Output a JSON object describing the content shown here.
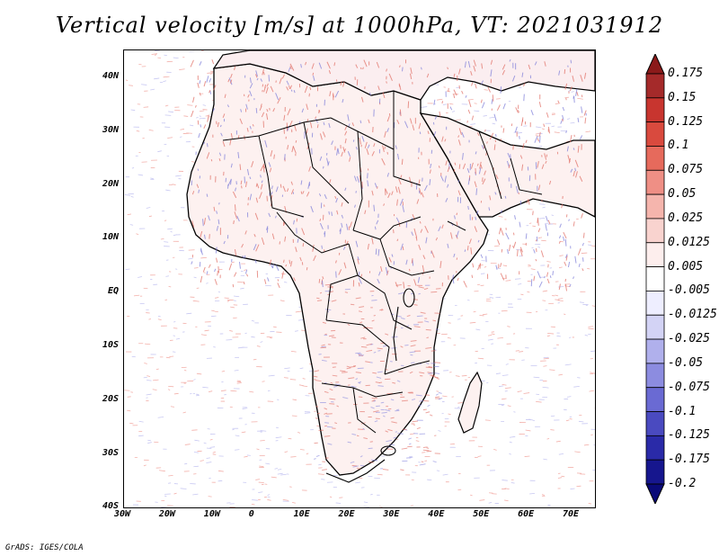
{
  "title": "Vertical velocity [m/s] at 1000hPa, VT: 2021031912",
  "credit": "GrADS: IGES/COLA",
  "lat_labels": [
    "40N",
    "30N",
    "20N",
    "10N",
    "EQ",
    "10S",
    "20S",
    "30S",
    "40S"
  ],
  "lon_labels": [
    "30W",
    "20W",
    "10W",
    "0",
    "10E",
    "20E",
    "30E",
    "40E",
    "50E",
    "60E",
    "70E"
  ],
  "colorbar": {
    "labels": [
      "0.175",
      "0.15",
      "0.125",
      "0.1",
      "0.075",
      "0.05",
      "0.025",
      "0.0125",
      "0.005",
      "-0.005",
      "-0.0125",
      "-0.025",
      "-0.05",
      "-0.075",
      "-0.1",
      "-0.125",
      "-0.175",
      "-0.2"
    ],
    "colors": [
      "#8b1a1a",
      "#a52a2a",
      "#c8352f",
      "#d94a3e",
      "#e66a5c",
      "#ef8f85",
      "#f5b5ad",
      "#f9d3cf",
      "#fdeeed",
      "#ffffff",
      "#eeeeff",
      "#d3d3f5",
      "#b0b0ec",
      "#8c8ce0",
      "#6a6ad3",
      "#4a4ac0",
      "#2a2aa8",
      "#16168e",
      "#0a0a78"
    ]
  },
  "chart_data": {
    "type": "heatmap",
    "title": "Vertical velocity [m/s] at 1000hPa, VT: 2021031912",
    "variable": "Vertical velocity",
    "units": "m/s",
    "level": "1000hPa",
    "valid_time": "2021031912",
    "lon_range": [
      -30,
      76
    ],
    "lat_range": [
      -40,
      45
    ],
    "x_ticks": [
      "30W",
      "20W",
      "10W",
      "0",
      "10E",
      "20E",
      "30E",
      "40E",
      "50E",
      "60E",
      "70E"
    ],
    "y_ticks": [
      "40N",
      "30N",
      "20N",
      "10N",
      "EQ",
      "10S",
      "20S",
      "30S",
      "40S"
    ],
    "contour_levels": [
      -0.2,
      -0.175,
      -0.125,
      -0.1,
      -0.075,
      -0.05,
      -0.025,
      -0.0125,
      -0.005,
      0.005,
      0.0125,
      0.025,
      0.05,
      0.075,
      0.1,
      0.125,
      0.15,
      0.175
    ]
  }
}
